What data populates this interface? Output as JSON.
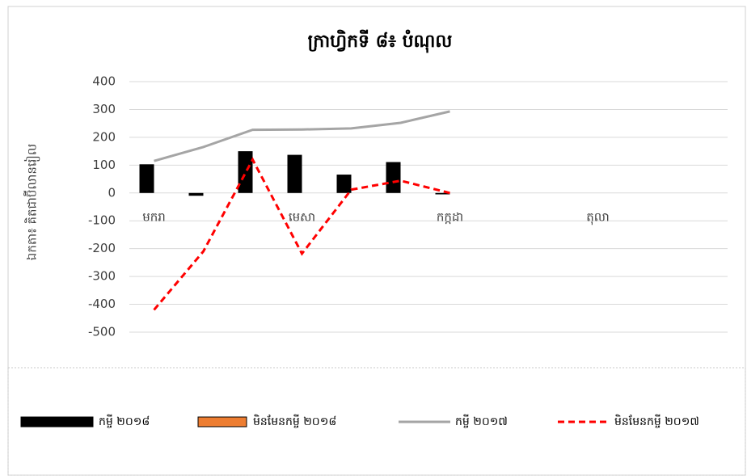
{
  "chart_data": {
    "type": "bar",
    "title": "ក្រាហ្វិកទី ៨៖ បំណុល",
    "y_label": "ឯកតា៖ គិតជាប៊ីលានរៀល",
    "categories": [
      "មករា",
      null,
      null,
      "មេសា",
      null,
      null,
      "កក្កដា",
      null,
      null,
      "តុលា",
      null,
      null
    ],
    "series": [
      {
        "name": "កម្ចី ២០១៨",
        "type": "bar",
        "color": "#000000",
        "values": [
          103,
          -10,
          150,
          137,
          66,
          111,
          -5,
          null,
          null,
          null,
          null,
          null
        ]
      },
      {
        "name": "មិនមែនកម្ចី ២០១៨",
        "type": "bar",
        "color": "#ed7d31",
        "values": [
          null,
          null,
          null,
          null,
          null,
          null,
          null,
          null,
          null,
          null,
          null,
          null
        ]
      },
      {
        "name": "កម្ចី ២០១៧",
        "type": "line",
        "color": "#a5a5a5",
        "values": [
          115,
          165,
          227,
          228,
          232,
          252,
          293,
          null,
          null,
          null,
          null,
          null
        ]
      },
      {
        "name": "មិនមែនកម្ចី ២០១៧",
        "type": "line",
        "dashed": true,
        "color": "#ff0000",
        "values": [
          -420,
          -210,
          120,
          -218,
          12,
          44,
          0,
          null,
          null,
          null,
          null,
          null
        ]
      }
    ],
    "ylim": [
      -500,
      400
    ],
    "yticks": [
      -500,
      -400,
      -300,
      -200,
      -100,
      0,
      100,
      200,
      300,
      400
    ],
    "grid": true,
    "legend": "bottom"
  }
}
